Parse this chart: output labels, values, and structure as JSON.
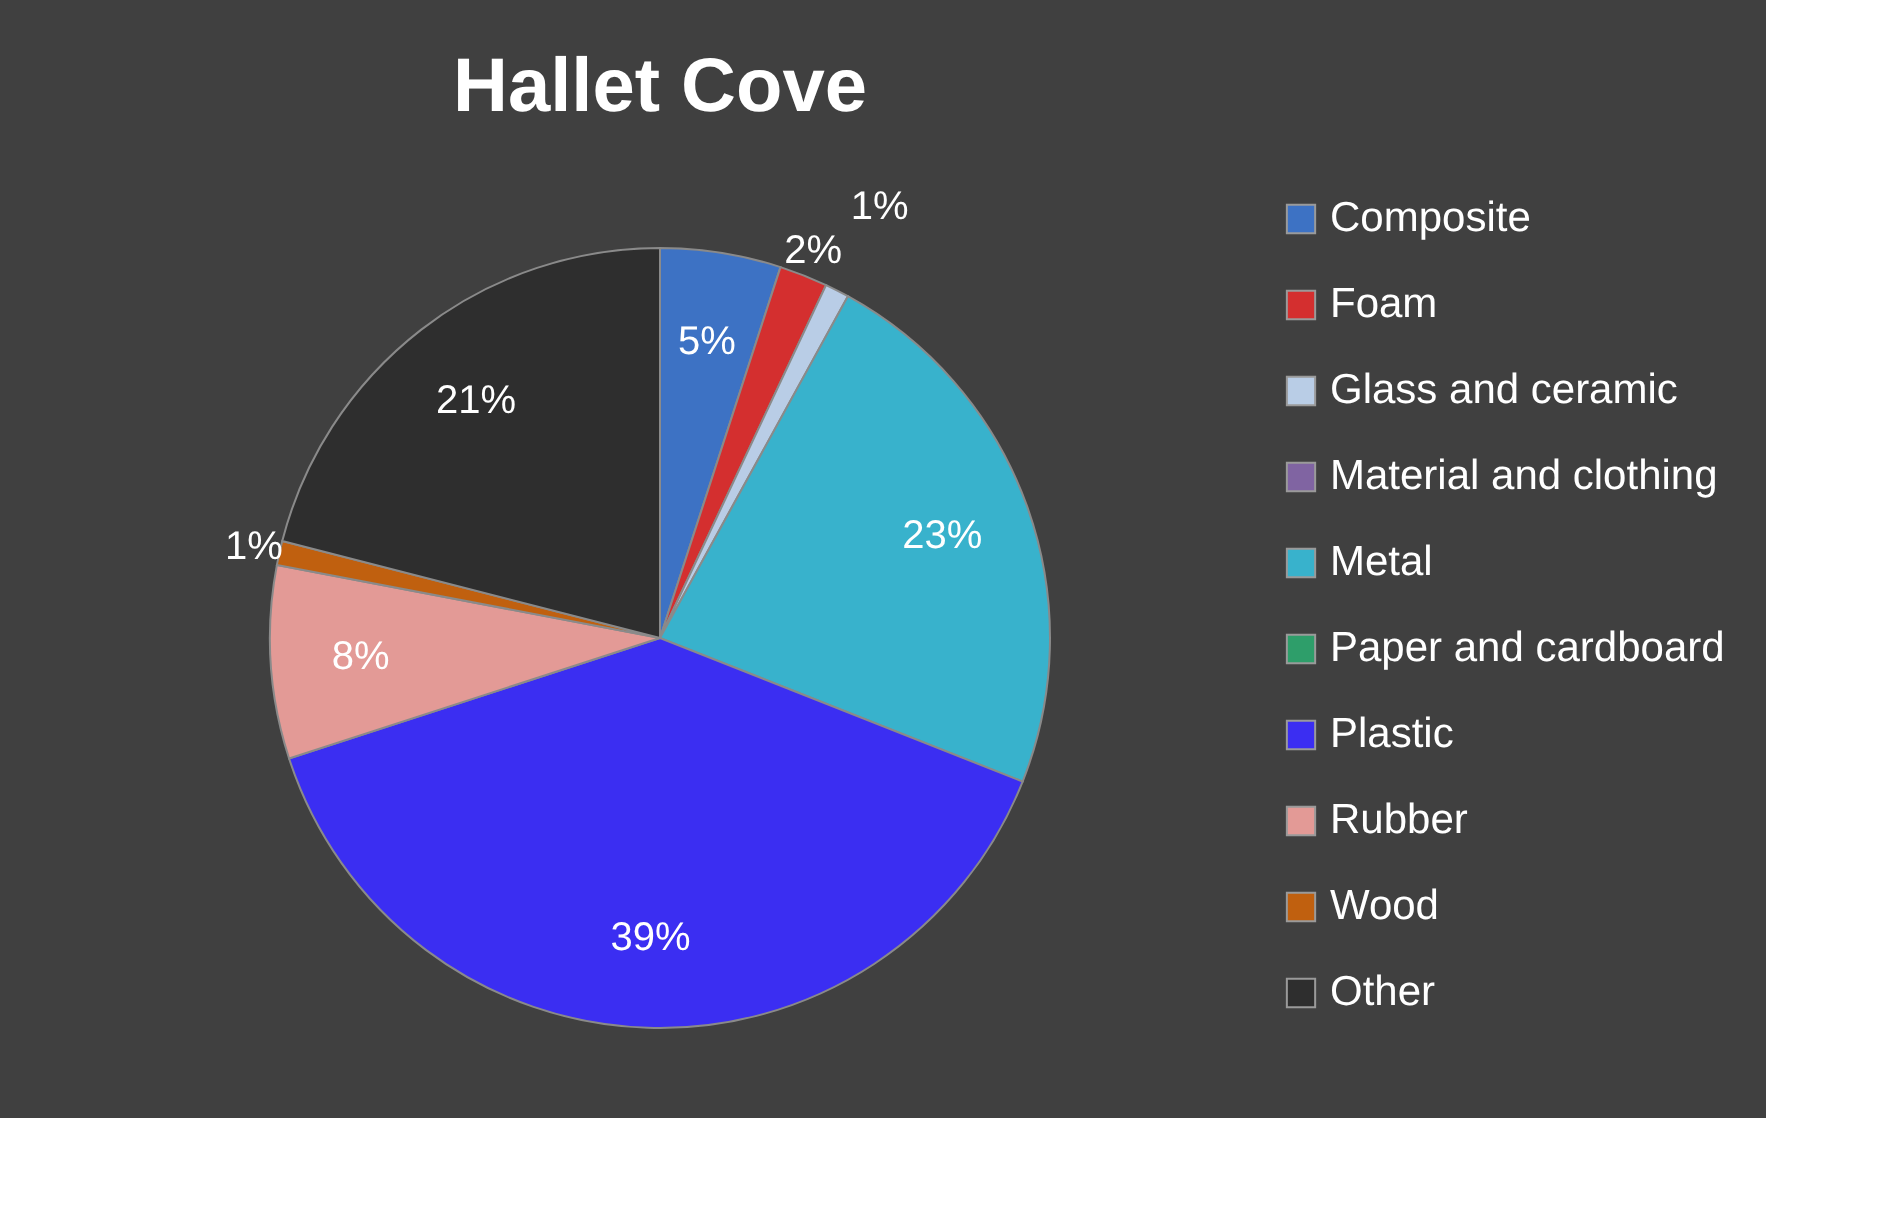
{
  "chart_data": {
    "type": "pie",
    "title": "Hallet Cove",
    "categories": [
      "Composite",
      "Foam",
      "Glass and ceramic",
      "Material and clothing",
      "Metal",
      "Paper and cardboard",
      "Plastic",
      "Rubber",
      "Wood",
      "Other"
    ],
    "values": [
      5,
      2,
      1,
      0,
      23,
      0,
      39,
      8,
      1,
      21
    ],
    "value_labels": [
      "5%",
      "2%",
      "1%",
      null,
      "23%",
      null,
      "39%",
      "8%",
      "1%",
      "21%"
    ],
    "colors": [
      "#3d72c4",
      "#d42f2f",
      "#b9cde6",
      "#8064a2",
      "#38b2cc",
      "#2e9e6a",
      "#3b2ef2",
      "#e39a96",
      "#c0600f",
      "#2e2e2e"
    ],
    "legend": "right"
  }
}
